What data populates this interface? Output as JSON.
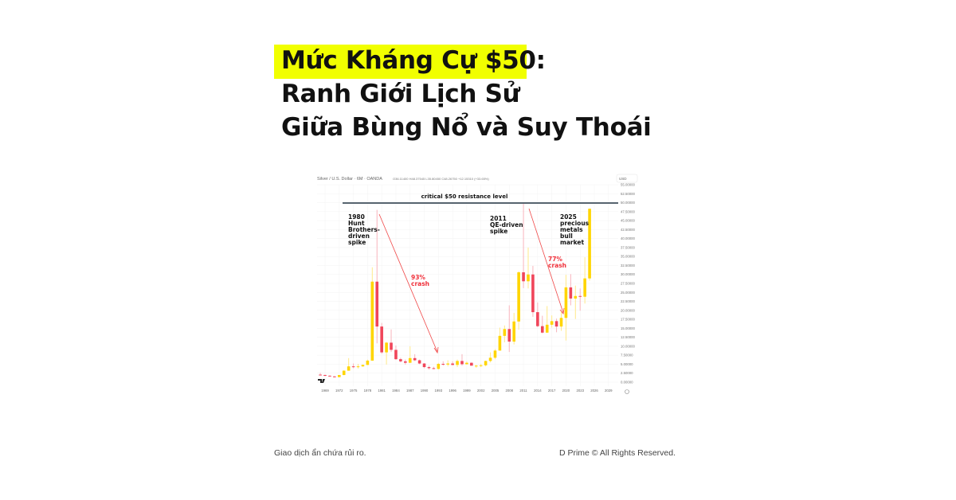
{
  "title": {
    "line1": "Mức Kháng Cự $50:",
    "line2": "Ranh Giới Lịch Sử",
    "line3": "Giữa Bùng Nổ và Suy Thoái",
    "highlight_color": "#F1FF00"
  },
  "footer": {
    "disclaimer": "Giao dịch ẩn chứa rủi ro.",
    "copyright": "D Prime © All Rights Reserved."
  },
  "chart_data": {
    "type": "candlestick",
    "symbol_header": "Silver / U.S. Dollar · 6M · OANDA",
    "ohlc_header": "O36.11400 H48.37545 L35.80450 C48.26750 +12.15310 (+33.65%)",
    "currency_selector": "USD",
    "up_color": "#FFD500",
    "down_color": "#F0455A",
    "ylim": [
      0,
      55
    ],
    "y_ticks": [
      "55.00000",
      "52.50000",
      "50.00000",
      "47.50000",
      "45.00000",
      "42.50000",
      "40.00000",
      "37.50000",
      "35.00000",
      "32.50000",
      "30.00000",
      "27.50000",
      "25.00000",
      "22.50000",
      "20.00000",
      "17.50000",
      "15.00000",
      "12.50000",
      "10.00000",
      "7.50000",
      "5.00000",
      "2.50000",
      "0.00000"
    ],
    "x_ticks": [
      "1969",
      "1972",
      "1975",
      "1978",
      "1981",
      "1984",
      "1987",
      "1990",
      "1993",
      "1996",
      "1999",
      "2002",
      "2005",
      "2008",
      "2011",
      "2014",
      "2017",
      "2020",
      "2023",
      "2026",
      "2029"
    ],
    "resistance": {
      "value": 50,
      "label": "critical $50 resistance level"
    },
    "annotations": [
      {
        "text": [
          "1980",
          "Hunt",
          "Brothers-",
          "driven",
          "spike"
        ],
        "color": "#111111"
      },
      {
        "text": [
          "2011",
          "QE-driven",
          "spike"
        ],
        "color": "#111111"
      },
      {
        "text": [
          "2025",
          "precious",
          "metals",
          "bull",
          "market"
        ],
        "color": "#111111"
      },
      {
        "text": [
          "93%",
          "crash"
        ],
        "color": "#F0303A"
      },
      {
        "text": [
          "77%",
          "crash"
        ],
        "color": "#F0303A"
      }
    ],
    "candles": [
      [
        1968,
        2.1,
        2.6,
        1.9,
        2.0
      ],
      [
        1969,
        2.0,
        2.1,
        1.6,
        1.8
      ],
      [
        1970,
        1.8,
        1.9,
        1.6,
        1.6
      ],
      [
        1971,
        1.6,
        1.7,
        1.3,
        1.4
      ],
      [
        1972,
        1.4,
        2.0,
        1.4,
        2.0
      ],
      [
        1973,
        2.0,
        3.3,
        1.9,
        3.2
      ],
      [
        1974,
        3.2,
        6.7,
        3.2,
        4.4
      ],
      [
        1975,
        4.4,
        5.2,
        3.9,
        4.2
      ],
      [
        1976,
        4.2,
        5.1,
        3.8,
        4.4
      ],
      [
        1977,
        4.4,
        4.9,
        4.3,
        4.8
      ],
      [
        1978,
        4.8,
        6.3,
        4.8,
        6.0
      ],
      [
        1979,
        6.0,
        32,
        6.0,
        28
      ],
      [
        1980,
        28,
        48,
        10.8,
        15.5
      ],
      [
        1981,
        15.5,
        16.5,
        7.9,
        8.3
      ],
      [
        1982,
        8.3,
        11.2,
        4.9,
        11.0
      ],
      [
        1983,
        11.0,
        14.7,
        8.4,
        9.0
      ],
      [
        1984,
        9.0,
        10.2,
        6.2,
        6.4
      ],
      [
        1985,
        6.4,
        6.8,
        5.5,
        5.8
      ],
      [
        1986,
        5.8,
        6.3,
        4.9,
        5.4
      ],
      [
        1987,
        5.4,
        10.0,
        5.4,
        6.7
      ],
      [
        1988,
        6.7,
        7.8,
        5.9,
        6.1
      ],
      [
        1989,
        6.1,
        6.3,
        5.0,
        5.2
      ],
      [
        1990,
        5.2,
        5.3,
        3.9,
        4.2
      ],
      [
        1991,
        4.2,
        4.6,
        3.5,
        3.9
      ],
      [
        1992,
        3.9,
        4.3,
        3.6,
        3.7
      ],
      [
        1993,
        3.7,
        5.4,
        3.5,
        5.1
      ],
      [
        1994,
        5.1,
        5.8,
        4.6,
        4.9
      ],
      [
        1995,
        4.9,
        6.1,
        4.4,
        5.2
      ],
      [
        1996,
        5.2,
        5.8,
        4.7,
        4.8
      ],
      [
        1997,
        4.8,
        6.3,
        4.2,
        5.9
      ],
      [
        1998,
        5.9,
        7.8,
        4.6,
        5.0
      ],
      [
        1999,
        5.0,
        5.8,
        4.9,
        5.4
      ],
      [
        2000,
        5.4,
        5.5,
        4.6,
        4.6
      ],
      [
        2001,
        4.6,
        4.8,
        4.0,
        4.6
      ],
      [
        2002,
        4.6,
        5.1,
        4.2,
        4.7
      ],
      [
        2003,
        4.7,
        6.0,
        4.4,
        5.9
      ],
      [
        2004,
        5.9,
        8.3,
        5.5,
        6.8
      ],
      [
        2005,
        6.8,
        9.2,
        6.4,
        8.8
      ],
      [
        2006,
        8.8,
        15.2,
        8.8,
        12.9
      ],
      [
        2007,
        12.9,
        15.8,
        11.1,
        14.8
      ],
      [
        2008,
        14.8,
        21.4,
        8.4,
        11.3
      ],
      [
        2009,
        11.3,
        19.3,
        10.5,
        16.9
      ],
      [
        2010,
        16.9,
        30.9,
        14.6,
        30.6
      ],
      [
        2011,
        30.6,
        49.8,
        26.2,
        28.1
      ],
      [
        2012,
        28.1,
        37.5,
        26.1,
        30.0
      ],
      [
        2013,
        30.0,
        32.4,
        18.2,
        19.5
      ],
      [
        2014,
        19.5,
        22.2,
        15.3,
        15.6
      ],
      [
        2015,
        15.6,
        18.5,
        13.6,
        13.8
      ],
      [
        2016,
        13.8,
        21.2,
        13.7,
        16.0
      ],
      [
        2017,
        16.0,
        18.6,
        15.2,
        17.0
      ],
      [
        2018,
        17.0,
        17.7,
        13.9,
        15.5
      ],
      [
        2019,
        15.5,
        19.6,
        14.3,
        17.9
      ],
      [
        2020,
        17.9,
        29.9,
        11.6,
        26.4
      ],
      [
        2021,
        26.4,
        30.1,
        21.4,
        23.3
      ],
      [
        2022,
        23.3,
        26.9,
        17.6,
        24.0
      ],
      [
        2023,
        24.0,
        26.1,
        19.9,
        23.8
      ],
      [
        2024,
        23.8,
        34.8,
        21.9,
        28.9
      ],
      [
        2025,
        28.9,
        48.4,
        28.3,
        48.3
      ]
    ]
  }
}
